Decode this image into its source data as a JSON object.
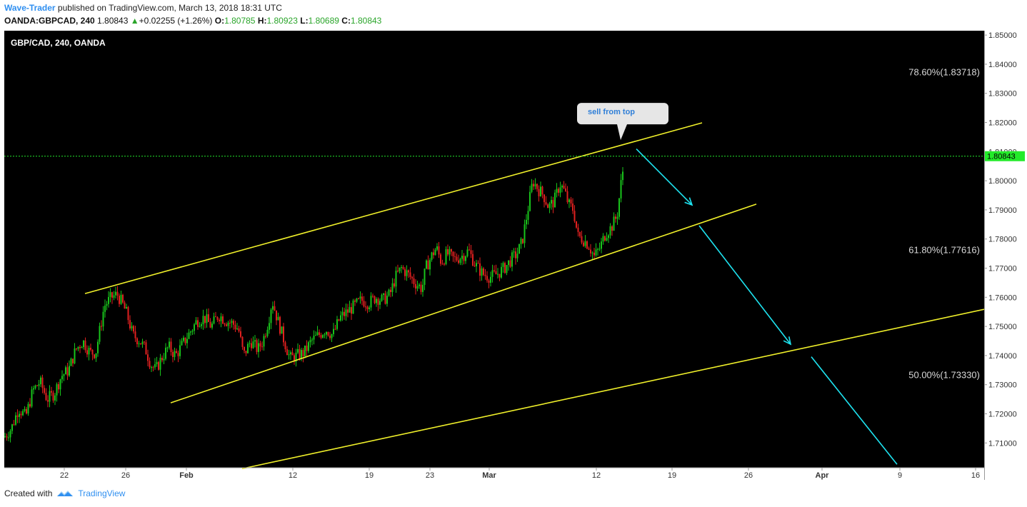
{
  "header": {
    "author": "Wave-Trader",
    "published": " published on TradingView.com, March 13, 2018 18:31 UTC",
    "symbol": "OANDA:GBPCAD, 240",
    "last": "1.80843",
    "arrow": "▲",
    "change": "+0.02255 (+1.26%)",
    "o_label": "O:",
    "o": "1.80785",
    "h_label": "H:",
    "h": "1.80923",
    "l_label": "L:",
    "l": "1.80689",
    "c_label": "C:",
    "c": "1.80843"
  },
  "footer": {
    "created_with": "Created with",
    "brand": "TradingView"
  },
  "chart_data": {
    "type": "candlestick",
    "title": "GBP/CAD, 240, OANDA",
    "ylim": [
      1.7015,
      1.8515
    ],
    "y_ticks": [
      "1.85000",
      "1.84000",
      "1.83000",
      "1.82000",
      "1.81000",
      "1.80000",
      "1.79000",
      "1.78000",
      "1.77000",
      "1.76000",
      "1.75000",
      "1.74000",
      "1.73000",
      "1.72000",
      "1.71000"
    ],
    "x_ticks": [
      "22",
      "26",
      "Feb",
      "12",
      "19",
      "23",
      "Mar",
      "12",
      "19",
      "26",
      "Apr",
      "9",
      "16"
    ],
    "last_price_label": "1.80843",
    "last_price": 1.80843,
    "colors": {
      "up": "#19c41b",
      "down": "#e0201f",
      "channel": "#f0f02a",
      "arrow": "#1ee3f0",
      "last": "#23ea2a",
      "grid_text": "#dddddd",
      "fib_text": "#d8d8d8"
    },
    "candle_path": [
      [
        0,
        1.712
      ],
      [
        10,
        1.715
      ],
      [
        20,
        1.722
      ],
      [
        30,
        1.719
      ],
      [
        40,
        1.728
      ],
      [
        50,
        1.731
      ],
      [
        60,
        1.725
      ],
      [
        70,
        1.727
      ],
      [
        80,
        1.733
      ],
      [
        90,
        1.735
      ],
      [
        100,
        1.742
      ],
      [
        110,
        1.745
      ],
      [
        120,
        1.741
      ],
      [
        128,
        1.741
      ],
      [
        140,
        1.757
      ],
      [
        150,
        1.76
      ],
      [
        158,
        1.761
      ],
      [
        165,
        1.758
      ],
      [
        172,
        1.754
      ],
      [
        180,
        1.747
      ],
      [
        190,
        1.745
      ],
      [
        198,
        1.742
      ],
      [
        205,
        1.737
      ],
      [
        212,
        1.735
      ],
      [
        220,
        1.739
      ],
      [
        230,
        1.743
      ],
      [
        240,
        1.74
      ],
      [
        250,
        1.744
      ],
      [
        260,
        1.748
      ],
      [
        270,
        1.752
      ],
      [
        280,
        1.753
      ],
      [
        290,
        1.75
      ],
      [
        300,
        1.754
      ],
      [
        310,
        1.752
      ],
      [
        320,
        1.751
      ],
      [
        328,
        1.749
      ],
      [
        335,
        1.74
      ],
      [
        345,
        1.745
      ],
      [
        355,
        1.742
      ],
      [
        362,
        1.745
      ],
      [
        370,
        1.752
      ],
      [
        375,
        1.759
      ],
      [
        383,
        1.752
      ],
      [
        392,
        1.745
      ],
      [
        400,
        1.739
      ],
      [
        410,
        1.74
      ],
      [
        420,
        1.741
      ],
      [
        430,
        1.745
      ],
      [
        440,
        1.747
      ],
      [
        450,
        1.749
      ],
      [
        460,
        1.747
      ],
      [
        470,
        1.753
      ],
      [
        480,
        1.755
      ],
      [
        490,
        1.757
      ],
      [
        500,
        1.759
      ],
      [
        510,
        1.758
      ],
      [
        520,
        1.76
      ],
      [
        530,
        1.759
      ],
      [
        540,
        1.761
      ],
      [
        548,
        1.767
      ],
      [
        556,
        1.77
      ],
      [
        565,
        1.768
      ],
      [
        575,
        1.765
      ],
      [
        585,
        1.763
      ],
      [
        590,
        1.77
      ],
      [
        600,
        1.775
      ],
      [
        605,
        1.777
      ],
      [
        612,
        1.772
      ],
      [
        620,
        1.775
      ],
      [
        630,
        1.773
      ],
      [
        640,
        1.774
      ],
      [
        650,
        1.776
      ],
      [
        660,
        1.771
      ],
      [
        670,
        1.768
      ],
      [
        680,
        1.767
      ],
      [
        690,
        1.768
      ],
      [
        700,
        1.77
      ],
      [
        710,
        1.773
      ],
      [
        718,
        1.775
      ],
      [
        725,
        1.779
      ],
      [
        733,
        1.79
      ],
      [
        740,
        1.8
      ],
      [
        748,
        1.797
      ],
      [
        755,
        1.795
      ],
      [
        762,
        1.791
      ],
      [
        770,
        1.793
      ],
      [
        778,
        1.799
      ],
      [
        785,
        1.796
      ],
      [
        790,
        1.792
      ],
      [
        797,
        1.79
      ],
      [
        803,
        1.781
      ],
      [
        810,
        1.78
      ],
      [
        818,
        1.778
      ],
      [
        826,
        1.774
      ],
      [
        834,
        1.777
      ],
      [
        842,
        1.782
      ],
      [
        850,
        1.784
      ],
      [
        858,
        1.788
      ],
      [
        864,
        1.8
      ],
      [
        869,
        1.808
      ]
    ],
    "channel_lines": [
      {
        "p1": [
          1.76127,
          113
        ],
        "p2": [
          1.81988,
          977
        ]
      },
      {
        "p1": [
          1.72377,
          233
        ],
        "p2": [
          1.79197,
          1053
        ]
      },
      {
        "p1": [
          1.70117,
          333
        ],
        "p2": [
          1.75587,
          1372
        ]
      }
    ],
    "arrows": [
      {
        "from": [
          1.81091,
          885
        ],
        "to": [
          1.79168,
          963
        ]
      },
      {
        "from": [
          1.78458,
          973
        ],
        "to": [
          1.74388,
          1101
        ]
      },
      {
        "from": [
          1.73958,
          1130
        ],
        "to": [
          1.70267,
          1250
        ]
      }
    ],
    "fib_levels": [
      {
        "label": "78.60%(1.83718)",
        "price": 1.83718,
        "anchor": "label"
      },
      {
        "label": "61.80%(1.77616)",
        "price": 1.77616,
        "anchor": "label"
      },
      {
        "label": "50.00%(1.73330)",
        "price": 1.7333,
        "anchor": "label"
      }
    ],
    "annotation": {
      "text": "sell from top",
      "price_anchor": 1.812,
      "x": 868
    }
  }
}
